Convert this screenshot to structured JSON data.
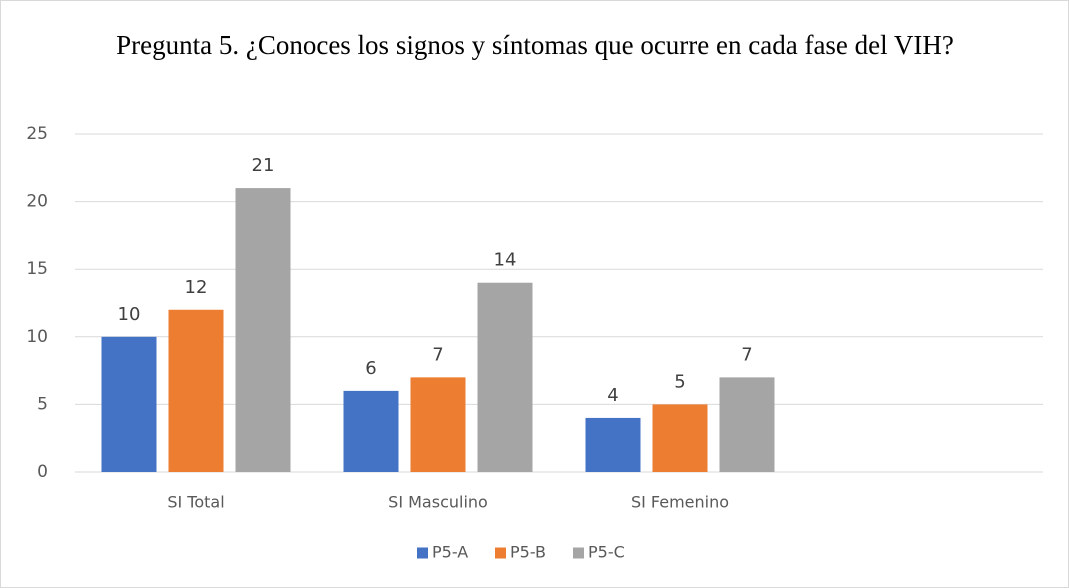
{
  "chart_data": {
    "type": "bar",
    "title": "Pregunta 5. ¿Conoces los signos y síntomas que ocurre en cada fase del VIH?",
    "categories": [
      "SI Total",
      "SI Masculino",
      "SI Femenino",
      null
    ],
    "series": [
      {
        "name": "P5-A",
        "color": "#4472c4",
        "values": [
          10,
          6,
          4,
          null
        ]
      },
      {
        "name": "P5-B",
        "color": "#ed7d31",
        "values": [
          12,
          7,
          5,
          null
        ]
      },
      {
        "name": "P5-C",
        "color": "#a5a5a5",
        "values": [
          21,
          14,
          7,
          null
        ]
      }
    ],
    "ylim": [
      0,
      25
    ],
    "yticks": [
      0,
      5,
      10,
      15,
      20,
      25
    ],
    "grid": true,
    "legend": "bottom"
  }
}
